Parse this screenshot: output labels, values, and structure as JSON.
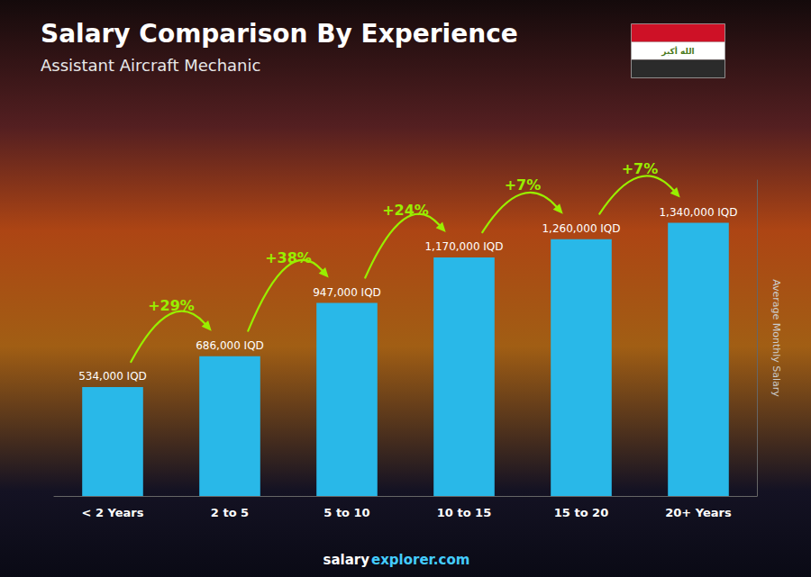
{
  "chart_data": {
    "type": "bar",
    "title": "Salary Comparison By Experience",
    "subtitle": "Assistant Aircraft Mechanic",
    "ylabel": "Average Monthly Salary",
    "categories": [
      "< 2 Years",
      "2 to 5",
      "5 to 10",
      "10 to 15",
      "15 to 20",
      "20+ Years"
    ],
    "values": [
      534000,
      686000,
      947000,
      1170000,
      1260000,
      1340000
    ],
    "value_labels": [
      "534,000 IQD",
      "686,000 IQD",
      "947,000 IQD",
      "1,170,000 IQD",
      "1,260,000 IQD",
      "1,340,000 IQD"
    ],
    "data_labels": true,
    "color": "#29b8e8",
    "ylim": [
      0,
      1550000
    ],
    "grid": false,
    "tick_labels": "x",
    "annotations": [
      "+29%",
      "+38%",
      "+24%",
      "+7%",
      "+7%",
      "salary",
      "explorer.com",
      "الله أكبر"
    ]
  }
}
